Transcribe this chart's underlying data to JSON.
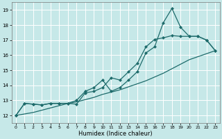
{
  "xlabel": "Humidex (Indice chaleur)",
  "bg_color": "#c6e8e8",
  "grid_color": "#ffffff",
  "line_color": "#1e6b6b",
  "xlim": [
    -0.5,
    23.5
  ],
  "ylim": [
    11.5,
    19.5
  ],
  "xticks": [
    0,
    1,
    2,
    3,
    4,
    5,
    6,
    7,
    8,
    9,
    10,
    11,
    12,
    13,
    14,
    15,
    16,
    17,
    18,
    19,
    20,
    21,
    22,
    23
  ],
  "yticks": [
    12,
    13,
    14,
    15,
    16,
    17,
    18,
    19
  ],
  "line1_x": [
    0,
    1,
    2,
    3,
    4,
    5,
    6,
    7,
    8,
    9,
    10,
    11,
    12,
    13,
    14,
    15,
    16,
    17,
    18,
    19,
    20,
    21,
    22,
    23
  ],
  "line1_y": [
    12.0,
    12.8,
    12.75,
    12.7,
    12.8,
    12.8,
    12.8,
    12.75,
    13.5,
    13.6,
    13.85,
    14.5,
    14.35,
    14.9,
    15.45,
    16.55,
    17.05,
    17.15,
    17.3,
    17.25,
    17.25,
    17.25,
    17.0,
    16.3
  ],
  "line2_x": [
    0,
    1,
    2,
    3,
    4,
    5,
    6,
    7,
    8,
    9,
    10,
    11,
    12,
    13,
    14,
    15,
    16,
    17,
    18,
    19,
    20,
    21,
    22,
    23
  ],
  "line2_y": [
    12.0,
    12.8,
    12.75,
    12.7,
    12.8,
    12.8,
    12.8,
    13.0,
    13.6,
    13.85,
    14.35,
    13.6,
    13.85,
    14.35,
    14.9,
    16.15,
    16.55,
    18.15,
    19.1,
    17.85,
    17.25,
    17.25,
    17.0,
    16.3
  ],
  "line3_x": [
    0,
    1,
    2,
    3,
    4,
    5,
    6,
    7,
    8,
    9,
    10,
    11,
    12,
    13,
    14,
    15,
    16,
    17,
    18,
    19,
    20,
    21,
    22,
    23
  ],
  "line3_y": [
    12.0,
    12.1,
    12.2,
    12.35,
    12.5,
    12.65,
    12.8,
    12.9,
    13.05,
    13.2,
    13.4,
    13.55,
    13.7,
    13.9,
    14.1,
    14.3,
    14.55,
    14.8,
    15.1,
    15.4,
    15.7,
    15.9,
    16.1,
    16.3
  ],
  "marker_size": 2.5,
  "linewidth": 0.9
}
